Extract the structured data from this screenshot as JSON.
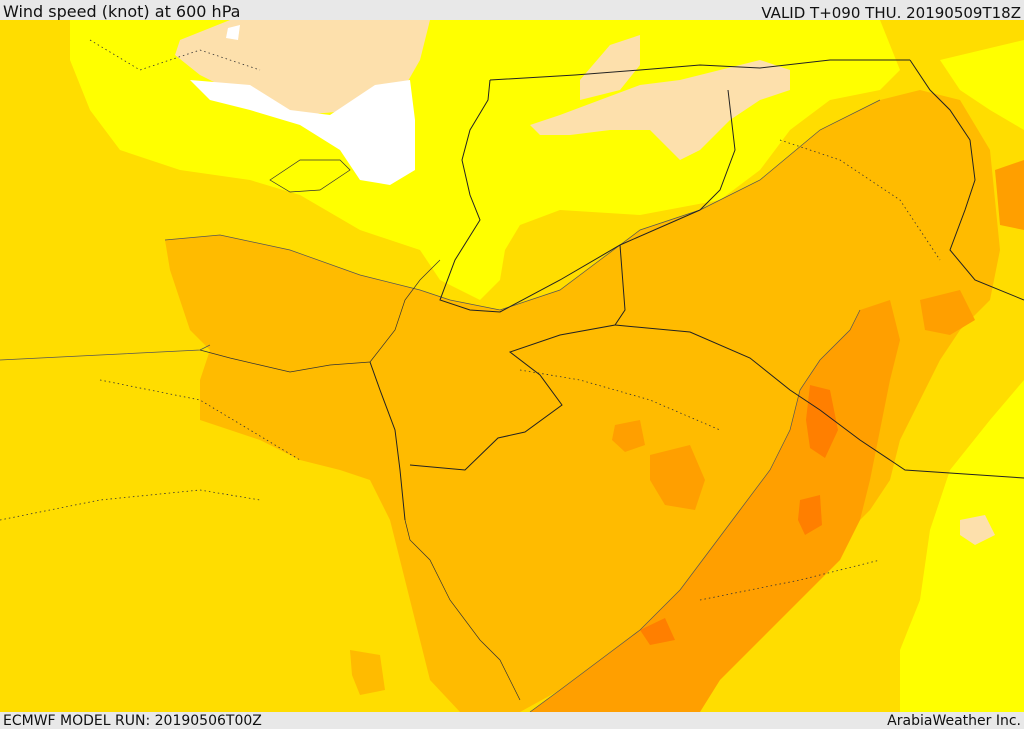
{
  "header": {
    "title": "Wind speed (knot) at 600 hPa",
    "valid": "VALID T+090 THU. 20190509T18Z"
  },
  "footer": {
    "model_run": "ECMWF MODEL RUN: 20190506T00Z",
    "credit": "ArabiaWeather Inc."
  },
  "colors": {
    "band_lt_10": "#ffffff",
    "band_10_15": "#fde0ac",
    "band_15_20": "#ffff00",
    "band_20_25": "#ffdd00",
    "band_25_30": "#ffbb00",
    "band_30_35": "#ff9f00",
    "band_35_40": "#ff7f00",
    "boundary": "#222222"
  }
}
